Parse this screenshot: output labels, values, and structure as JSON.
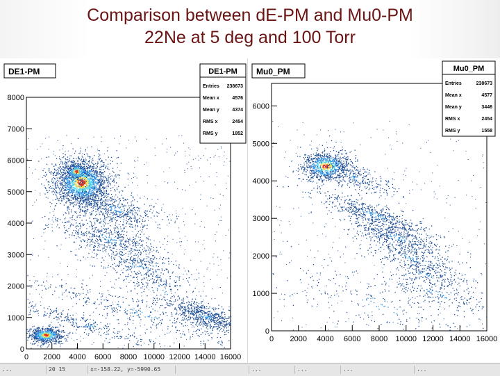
{
  "slide": {
    "title_line1": "Comparison between dE-PM and Mu0-PM",
    "title_line2": "22Ne at 5 deg and 100 Torr"
  },
  "status_bar": {
    "cells": [
      "...",
      "20 15",
      "x=-158.22, y=-5990.65",
      "",
      "...",
      "...",
      "...",
      "..."
    ]
  },
  "colors": {
    "title": "#6b1414",
    "scatter_main": "#1f4f96",
    "scatter_dense": "#2f8fe0",
    "scatter_core": "#58d6e8",
    "scatter_peak": "#f0d84c",
    "scatter_hot": "#e03020"
  },
  "chart_data": [
    {
      "type": "heatmap",
      "title": "DE1-PM",
      "xlim": [
        0,
        16000
      ],
      "ylim": [
        0,
        8000
      ],
      "x_ticks": [
        "0",
        "2000",
        "4000",
        "6000",
        "8000",
        "10000",
        "12000",
        "14000",
        "16000"
      ],
      "y_ticks": [
        "0",
        "1000",
        "2000",
        "3000",
        "4000",
        "5000",
        "6000",
        "7000",
        "8000"
      ],
      "stats": {
        "name": "DE1-PM",
        "rows": [
          {
            "label": "Entries",
            "value": "238673"
          },
          {
            "label": "Mean x",
            "value": "4576"
          },
          {
            "label": "Mean y",
            "value": "4374"
          },
          {
            "label": "RMS x",
            "value": "2454"
          },
          {
            "label": "RMS y",
            "value": "1852"
          }
        ]
      },
      "clusters": [
        {
          "x": 4300,
          "y": 5300,
          "sx": 1100,
          "sy": 380,
          "n": 1900,
          "kind": "blob"
        },
        {
          "x": 3900,
          "y": 5650,
          "sx": 500,
          "sy": 150,
          "n": 300,
          "kind": "blob"
        },
        {
          "x": 7000,
          "y": 4450,
          "sx": 1700,
          "sy": 280,
          "n": 500,
          "kind": "band"
        },
        {
          "x": 6600,
          "y": 3500,
          "sx": 2200,
          "sy": 300,
          "n": 560,
          "kind": "band"
        },
        {
          "x": 8800,
          "y": 2600,
          "sx": 1800,
          "sy": 280,
          "n": 260,
          "kind": "band"
        },
        {
          "x": 10500,
          "y": 1900,
          "sx": 1700,
          "sy": 400,
          "n": 150,
          "kind": "band"
        },
        {
          "x": 14000,
          "y": 1050,
          "sx": 1500,
          "sy": 170,
          "n": 620,
          "kind": "band"
        },
        {
          "x": 8500,
          "y": 1200,
          "sx": 5000,
          "sy": 220,
          "n": 320,
          "kind": "band"
        },
        {
          "x": 1500,
          "y": 450,
          "sx": 700,
          "sy": 130,
          "n": 700,
          "kind": "blob"
        },
        {
          "x": 4500,
          "y": 800,
          "sx": 2800,
          "sy": 120,
          "n": 260,
          "kind": "band"
        }
      ]
    },
    {
      "type": "heatmap",
      "title": "Mu0_PM",
      "xlim": [
        0,
        16000
      ],
      "ylim": [
        0,
        6600
      ],
      "x_ticks": [
        "0",
        "2000",
        "4000",
        "6000",
        "8000",
        "10000",
        "12000",
        "14000",
        "16000"
      ],
      "y_ticks": [
        "0",
        "1000",
        "2000",
        "3000",
        "4000",
        "5000",
        "6000"
      ],
      "stats": {
        "name": "Mu0_PM",
        "rows": [
          {
            "label": "Entries",
            "value": "238673"
          },
          {
            "label": "Mean x",
            "value": "4577"
          },
          {
            "label": "Mean y",
            "value": "3446"
          },
          {
            "label": "RMS x",
            "value": "2454"
          },
          {
            "label": "RMS y",
            "value": "1558"
          }
        ]
      },
      "clusters": [
        {
          "x": 4000,
          "y": 4400,
          "sx": 900,
          "sy": 200,
          "n": 900,
          "kind": "blob"
        },
        {
          "x": 6200,
          "y": 4100,
          "sx": 1500,
          "sy": 150,
          "n": 260,
          "kind": "band"
        },
        {
          "x": 7600,
          "y": 3100,
          "sx": 2200,
          "sy": 150,
          "n": 520,
          "kind": "band"
        },
        {
          "x": 9300,
          "y": 2500,
          "sx": 2000,
          "sy": 150,
          "n": 420,
          "kind": "band"
        },
        {
          "x": 10400,
          "y": 1950,
          "sx": 1900,
          "sy": 150,
          "n": 260,
          "kind": "band"
        },
        {
          "x": 11500,
          "y": 1500,
          "sx": 1900,
          "sy": 140,
          "n": 200,
          "kind": "band"
        },
        {
          "x": 12300,
          "y": 1000,
          "sx": 2200,
          "sy": 150,
          "n": 160,
          "kind": "band"
        },
        {
          "x": 8000,
          "y": 700,
          "sx": 4500,
          "sy": 400,
          "n": 260,
          "kind": "band"
        }
      ]
    }
  ]
}
